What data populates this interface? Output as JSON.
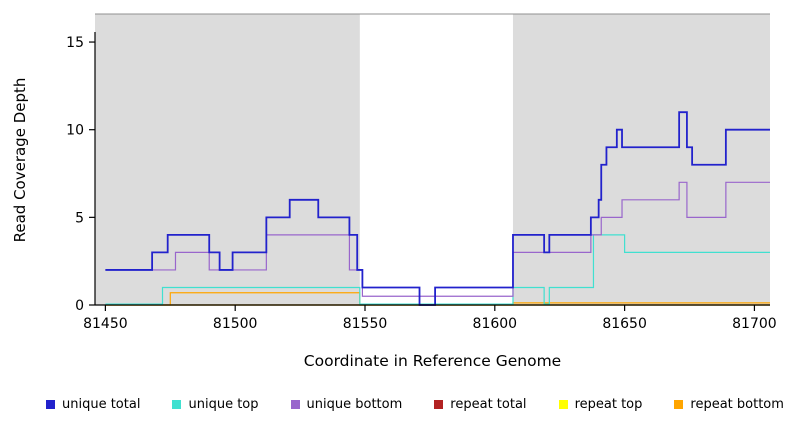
{
  "chart_data": {
    "type": "line",
    "subtype": "step-after",
    "title": "",
    "xlabel": "Coordinate in Reference Genome",
    "ylabel": "Read Coverage Depth",
    "xlim": [
      81446,
      81706
    ],
    "ylim": [
      0,
      16.6
    ],
    "x_ticks": [
      81450,
      81500,
      81550,
      81600,
      81650,
      81700
    ],
    "y_ticks": [
      0,
      5,
      10,
      15
    ],
    "grid": false,
    "legend_position": "bottom",
    "background": {
      "plot_fill": "#dcdcdc",
      "gap_band": {
        "x0": 81548,
        "x1": 81607,
        "fill": "#ffffff"
      },
      "top_border_color": "#909090",
      "axis_color": "#000000"
    },
    "series": [
      {
        "name": "repeat total",
        "color": "#b22222",
        "width": 1.2,
        "points": [
          [
            81450,
            0
          ],
          [
            81706,
            0
          ]
        ]
      },
      {
        "name": "repeat top",
        "color": "#ffff00",
        "width": 1.2,
        "points": [
          [
            81450,
            0
          ],
          [
            81706,
            0
          ]
        ]
      },
      {
        "name": "repeat bottom",
        "color": "#ffa500",
        "width": 1.2,
        "points": [
          [
            81450,
            0
          ],
          [
            81475,
            0.7
          ],
          [
            81548,
            0
          ],
          [
            81607,
            0.12
          ],
          [
            81706,
            0.12
          ]
        ]
      },
      {
        "name": "unique top",
        "color": "#40e0d0",
        "width": 1.2,
        "points": [
          [
            81450,
            0.05
          ],
          [
            81472,
            1
          ],
          [
            81548,
            0.05
          ],
          [
            81607,
            1
          ],
          [
            81619,
            0.05
          ],
          [
            81621,
            1
          ],
          [
            81638,
            4
          ],
          [
            81650,
            3
          ],
          [
            81706,
            3
          ]
        ]
      },
      {
        "name": "unique bottom",
        "color": "#9966cc",
        "width": 1.2,
        "points": [
          [
            81450,
            2
          ],
          [
            81477,
            3
          ],
          [
            81490,
            2
          ],
          [
            81512,
            4
          ],
          [
            81544,
            2
          ],
          [
            81549,
            0.5
          ],
          [
            81607,
            3
          ],
          [
            81637,
            4
          ],
          [
            81641,
            5
          ],
          [
            81649,
            6
          ],
          [
            81671,
            7
          ],
          [
            81674,
            5
          ],
          [
            81689,
            7
          ],
          [
            81706,
            7
          ]
        ]
      },
      {
        "name": "unique total",
        "color": "#2222cc",
        "width": 1.8,
        "points": [
          [
            81450,
            2
          ],
          [
            81468,
            3
          ],
          [
            81474,
            4
          ],
          [
            81490,
            3
          ],
          [
            81494,
            2
          ],
          [
            81499,
            3
          ],
          [
            81512,
            5
          ],
          [
            81521,
            6
          ],
          [
            81532,
            5
          ],
          [
            81544,
            4
          ],
          [
            81547,
            2
          ],
          [
            81549,
            1
          ],
          [
            81571,
            0
          ],
          [
            81577,
            1
          ],
          [
            81607,
            4
          ],
          [
            81619,
            3
          ],
          [
            81621,
            4
          ],
          [
            81637,
            5
          ],
          [
            81640,
            6
          ],
          [
            81641,
            8
          ],
          [
            81643,
            9
          ],
          [
            81647,
            10
          ],
          [
            81649,
            9
          ],
          [
            81671,
            11
          ],
          [
            81674,
            9
          ],
          [
            81676,
            8
          ],
          [
            81689,
            10
          ],
          [
            81706,
            10
          ]
        ]
      }
    ]
  },
  "legend": {
    "items": [
      {
        "label": "unique total",
        "color": "#2222cc"
      },
      {
        "label": "unique top",
        "color": "#40e0d0"
      },
      {
        "label": "unique bottom",
        "color": "#9966cc"
      },
      {
        "label": "repeat total",
        "color": "#b22222"
      },
      {
        "label": "repeat top",
        "color": "#ffff00"
      },
      {
        "label": "repeat bottom",
        "color": "#ffa500"
      }
    ]
  }
}
